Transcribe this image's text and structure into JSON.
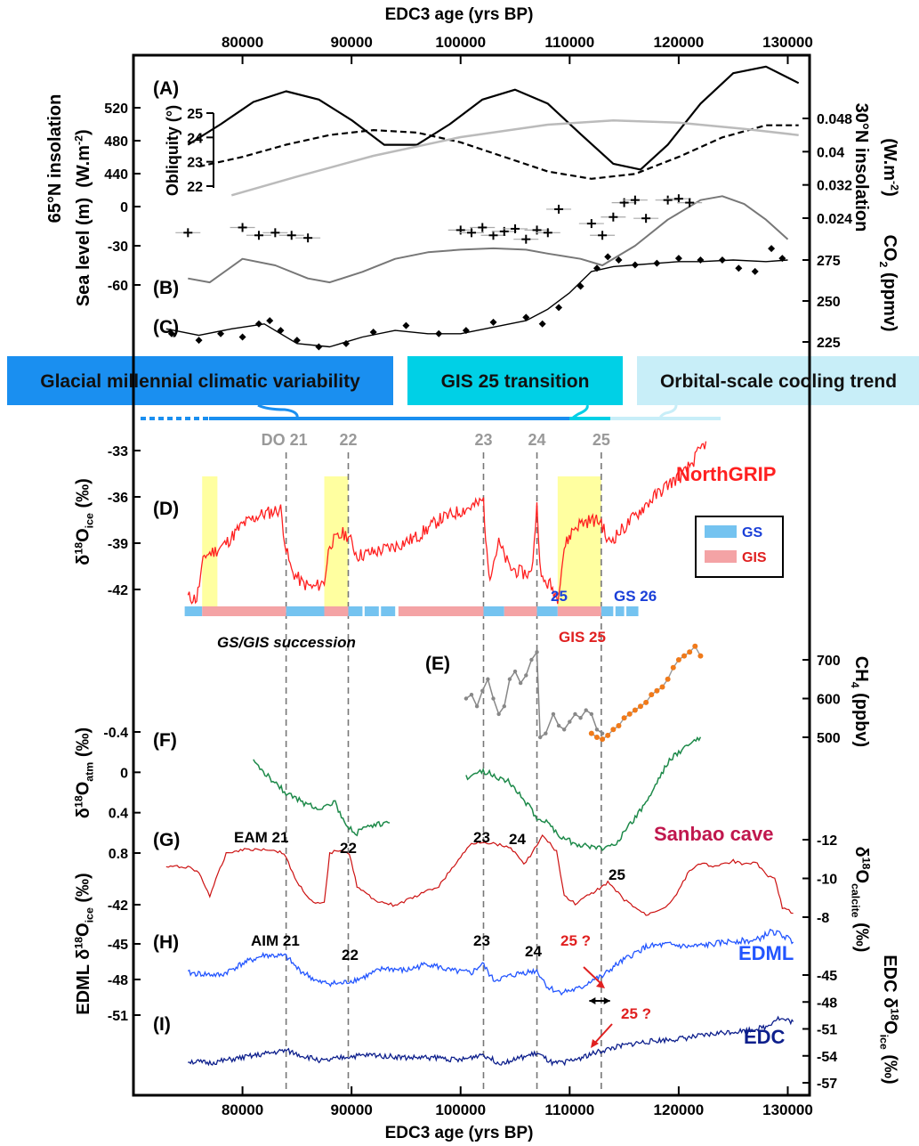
{
  "chart_data": {
    "type": "line",
    "x_axis": {
      "label": "EDC3 age (yrs BP)",
      "range": [
        70000,
        132000
      ],
      "ticks": [
        80000,
        90000,
        100000,
        110000,
        120000,
        130000
      ],
      "tick_labels": [
        "80000",
        "90000",
        "100000",
        "110000",
        "120000",
        "130000"
      ]
    },
    "left_axes": {
      "insolation65": {
        "label_main": "65°N insolation",
        "label_unit": "(W.m",
        "label_exp": "-2",
        "label_close": ")",
        "ticks": [
          "440",
          "480",
          "520"
        ]
      },
      "obliquity": {
        "label": "Obliquity (°)",
        "ticks": [
          "22",
          "23",
          "24",
          "25"
        ]
      },
      "sea_level": {
        "label": "Sea level (m)",
        "ticks": [
          "0",
          "-30",
          "-60"
        ]
      },
      "d18o_ice": {
        "label_main": "δ",
        "label_iso": "18",
        "label_o": "O",
        "label_sub": "ice",
        "label_unit": " (‰)",
        "ticks": [
          "-33",
          "-36",
          "-39",
          "-42"
        ]
      },
      "d18o_atm": {
        "label_main": "δ",
        "label_iso": "18",
        "label_o": "O",
        "label_sub": "atm",
        "label_unit": " (‰)",
        "ticks": [
          "-0.4",
          "0",
          "0.4",
          "0.8"
        ]
      },
      "edml": {
        "label_pre": "EDML δ",
        "label_iso": "18",
        "label_o": "O",
        "label_sub": "ice",
        "label_unit": " (‰)",
        "ticks": [
          "-42",
          "-45",
          "-48",
          "-51"
        ]
      }
    },
    "right_axes": {
      "insolation30": {
        "label_main": "30°N insolation",
        "label_unit": "(W.m",
        "label_exp": "-2",
        "label_close": ")",
        "ticks": [
          "0.048",
          "0.04",
          "0.032",
          "0.024"
        ]
      },
      "co2": {
        "label_main": "CO",
        "label_sub": "2",
        "label_unit": " (ppmv)",
        "ticks": [
          "275",
          "250",
          "225"
        ]
      },
      "ch4": {
        "label_main": "CH",
        "label_sub": "4",
        "label_unit": " (ppbv)",
        "ticks": [
          "700",
          "600",
          "500"
        ]
      },
      "calcite": {
        "label_main": "δ",
        "label_iso": "18",
        "label_o": "O",
        "label_sub": "calcite",
        "label_unit": " (‰)",
        "ticks": [
          "-12",
          "-10",
          "-8"
        ]
      },
      "edc": {
        "label_pre": "EDC δ",
        "label_iso": "18",
        "label_o": "O",
        "label_sub": "ice",
        "label_unit": " (‰)",
        "ticks": [
          "-45",
          "-48",
          "-51",
          "-54",
          "-57"
        ]
      }
    },
    "panel_letters": [
      "(A)",
      "(B)",
      "(C)",
      "(D)",
      "(E)",
      "(F)",
      "(G)",
      "(H)",
      "(I)"
    ],
    "banners": [
      {
        "label": "Glacial millennial climatic variability",
        "color": "#1a8ff0"
      },
      {
        "label": "GIS 25 transition",
        "color": "#00d0e6"
      },
      {
        "label": "Orbital-scale cooling trend",
        "color": "#c8eef8"
      }
    ],
    "events": [
      {
        "label": "DO 21",
        "age": 84000
      },
      {
        "label": "22",
        "age": 89700
      },
      {
        "label": "23",
        "age": 102100
      },
      {
        "label": "24",
        "age": 107000
      },
      {
        "label": "25",
        "age": 112900
      }
    ],
    "legend": [
      {
        "label": "GS",
        "color": "#74c3f0"
      },
      {
        "label": "GIS",
        "color": "#f4a3a5"
      }
    ],
    "series": [
      {
        "name": "NorthGRIP",
        "color": "#ff2020",
        "x": [
          75000,
          75800,
          76500,
          77500,
          78500,
          80000,
          81500,
          82500,
          83500,
          84000,
          84500,
          85500,
          86500,
          87500,
          88000,
          88500,
          89200,
          89700,
          90500,
          92000,
          94000,
          96000,
          98000,
          100000,
          101500,
          102100,
          102400,
          102700,
          103500,
          104500,
          105500,
          106500,
          107000,
          107400,
          108200,
          108900,
          109500,
          110300,
          111000,
          112000,
          112900,
          113500,
          115000,
          117000,
          119000,
          120500,
          121500,
          122500
        ],
        "y": [
          -42.5,
          -42.6,
          -39.8,
          -39.5,
          -39,
          -37.8,
          -37.2,
          -37,
          -36.8,
          -39.4,
          -40.8,
          -41.6,
          -41.9,
          -41.5,
          -39,
          -38.8,
          -38.4,
          -38.5,
          -39.8,
          -39.6,
          -39.2,
          -38.6,
          -37.5,
          -36.9,
          -36.5,
          -36.2,
          -39.8,
          -41,
          -39,
          -40.6,
          -40.9,
          -41,
          -36.6,
          -41.4,
          -41.7,
          -42.5,
          -39.3,
          -38.1,
          -37.7,
          -37.5,
          -37.6,
          -39,
          -38,
          -36.5,
          -35.2,
          -34.5,
          -33.5,
          -32.4
        ]
      },
      {
        "name": "EDML",
        "color": "#2255ff",
        "x": [
          75000,
          78000,
          80000,
          82000,
          84000,
          85000,
          87000,
          89000,
          91000,
          93000,
          95000,
          97000,
          99000,
          101000,
          102000,
          103000,
          104000,
          105500,
          107000,
          108000,
          109000,
          110000,
          111000,
          112000,
          113000,
          114000,
          115500,
          117000,
          119000,
          121000,
          123000,
          125000,
          127000,
          128500,
          129500,
          130500
        ],
        "y": [
          -47.6,
          -47.8,
          -46.8,
          -46.1,
          -46.2,
          -47.2,
          -48.4,
          -48.5,
          -48,
          -47.2,
          -47.4,
          -46.8,
          -47.4,
          -47.6,
          -46.8,
          -48.2,
          -48,
          -47.6,
          -47.4,
          -48.8,
          -49.2,
          -49.1,
          -48.9,
          -48.2,
          -47.9,
          -47.1,
          -46.2,
          -45.4,
          -45.2,
          -45.4,
          -45.2,
          -44.9,
          -44.9,
          -44.1,
          -44.4,
          -45
        ]
      },
      {
        "name": "EDC",
        "color": "#0d1f8c",
        "x": [
          75000,
          77000,
          80000,
          82000,
          84000,
          85500,
          87500,
          89500,
          92000,
          95000,
          98000,
          100000,
          102000,
          103500,
          105000,
          107000,
          108500,
          110000,
          111000,
          112500,
          114000,
          116000,
          118000,
          120000,
          122000,
          124000,
          126000,
          128000,
          129000,
          130500
        ],
        "y": [
          -54.6,
          -54.8,
          -54.2,
          -53.8,
          -53.4,
          -54,
          -54.6,
          -54.1,
          -53.9,
          -54.2,
          -54.2,
          -54.5,
          -53.8,
          -54.8,
          -54.4,
          -53.7,
          -54.9,
          -54.6,
          -54.2,
          -53.6,
          -53.1,
          -52.6,
          -52.3,
          -52.1,
          -51.8,
          -51.4,
          -51.2,
          -50.8,
          -49.8,
          -50.2
        ]
      },
      {
        "name": "Sanbao cave",
        "color": "#cc1111",
        "x": [
          73000,
          75000,
          76000,
          77000,
          78500,
          80000,
          82500,
          83800,
          85000,
          86500,
          87500,
          88000,
          89000,
          89800,
          90500,
          92000,
          94000,
          96000,
          98000,
          100000,
          101000,
          102000,
          104000,
          105000,
          105800,
          107000,
          107500,
          108000,
          108800,
          109500,
          110500,
          112000,
          113500,
          115000,
          117000,
          119000,
          120000,
          121000,
          122000,
          123500,
          125000,
          126000,
          127000,
          128000,
          128800,
          129500,
          130500
        ],
        "y": [
          -10.6,
          -10.6,
          -10.3,
          -9.1,
          -11.3,
          -11.5,
          -11.5,
          -11.3,
          -9.8,
          -8.7,
          -8.7,
          -11.3,
          -11.5,
          -11.3,
          -9.6,
          -8.9,
          -8.6,
          -9.1,
          -9.6,
          -11.1,
          -11.8,
          -11.9,
          -11.7,
          -11.4,
          -10.7,
          -11.7,
          -12.2,
          -11.9,
          -11.4,
          -9.1,
          -8.7,
          -9.2,
          -9.8,
          -8.9,
          -8.1,
          -8.6,
          -9.4,
          -10.4,
          -10.8,
          -10.6,
          -10.9,
          -10.7,
          -10.9,
          -10.2,
          -10,
          -8.5,
          -8.2
        ]
      },
      {
        "name": "",
        "color": "#888888",
        "x": [
          100500,
          101000,
          101500,
          102000,
          102500,
          103000,
          103500,
          104000,
          104500,
          105000,
          105500,
          106000,
          106500,
          107000,
          107300,
          107800,
          108500,
          109000,
          109500,
          110000,
          110500,
          111000,
          111500,
          112000,
          112500,
          113000
        ],
        "y": [
          600,
          610,
          580,
          620,
          650,
          600,
          560,
          580,
          650,
          670,
          640,
          660,
          700,
          720,
          500,
          510,
          560,
          530,
          520,
          540,
          560,
          550,
          570,
          560,
          520,
          510
        ]
      },
      {
        "name": "",
        "color": "#f07a1a",
        "x": [
          112000,
          112500,
          113000,
          113500,
          114000,
          114500,
          115000,
          115500,
          116000,
          116500,
          117000,
          117500,
          118000,
          118500,
          119000,
          119500,
          120000,
          120500,
          121000,
          121500,
          122000
        ],
        "y": [
          510,
          500,
          495,
          505,
          520,
          530,
          550,
          560,
          570,
          580,
          590,
          610,
          620,
          630,
          650,
          680,
          700,
          710,
          720,
          735,
          710
        ]
      },
      {
        "name": "",
        "color": "#1e8a4a",
        "x": [
          81000,
          82500,
          84000,
          85500,
          87000,
          88500,
          89500,
          90500,
          91500,
          92500,
          93500,
          100500,
          101500,
          102500,
          103500,
          104500,
          106000,
          107000,
          108000,
          109000,
          110000,
          111000,
          112000,
          113000,
          114000,
          115000,
          116000,
          117000,
          118000,
          119000,
          120000,
          121000,
          122000
        ],
        "y": [
          -0.1,
          0.05,
          0.2,
          0.3,
          0.35,
          0.3,
          0.55,
          0.6,
          0.55,
          0.52,
          0.5,
          0.05,
          0.0,
          0.0,
          0.05,
          0.1,
          0.3,
          0.45,
          0.5,
          0.62,
          0.68,
          0.72,
          0.74,
          0.75,
          0.72,
          0.6,
          0.45,
          0.3,
          0.1,
          -0.1,
          -0.2,
          -0.28,
          -0.35
        ]
      }
    ],
    "insolation65": {
      "x": [
        75000,
        78000,
        81000,
        84000,
        87000,
        90000,
        93000,
        96000,
        99000,
        102000,
        105000,
        108000,
        111000,
        114000,
        116500,
        119000,
        122000,
        125000,
        128000,
        131000
      ],
      "y": [
        475,
        500,
        527,
        540,
        530,
        505,
        475,
        475,
        500,
        530,
        542,
        525,
        488,
        452,
        445,
        475,
        525,
        562,
        570,
        550
      ]
    },
    "obliquity": {
      "x": [
        76000,
        80000,
        84000,
        88000,
        92000,
        96000,
        100000,
        104000,
        108000,
        112000,
        116000,
        120000,
        124000,
        128000,
        131000
      ],
      "y": [
        22.8,
        23.2,
        23.7,
        24.1,
        24.3,
        24.2,
        23.8,
        23.2,
        22.6,
        22.3,
        22.5,
        23.2,
        24.0,
        24.5,
        24.5
      ]
    },
    "insolation30_gray": {
      "x": [
        79000,
        85000,
        92000,
        100000,
        108000,
        114000,
        120000,
        126000,
        131000
      ],
      "y": [
        0.0295,
        0.034,
        0.039,
        0.0435,
        0.0465,
        0.0475,
        0.047,
        0.0455,
        0.044
      ]
    },
    "co2": {
      "x": [
        73000,
        76000,
        79000,
        82000,
        85000,
        88000,
        91000,
        94000,
        97000,
        100000,
        103000,
        106000,
        108000,
        110000,
        112000,
        114000,
        116000,
        118000,
        120000,
        122000,
        125000,
        128000,
        130000
      ],
      "y": [
        233,
        229,
        233,
        236,
        224,
        222,
        228,
        232,
        230,
        230,
        234,
        238,
        245,
        255,
        268,
        271,
        272,
        273,
        274,
        274,
        275,
        274,
        275
      ]
    },
    "co2_points": [
      [
        73500,
        230
      ],
      [
        76000,
        226
      ],
      [
        78000,
        230
      ],
      [
        80000,
        228
      ],
      [
        81500,
        236
      ],
      [
        82500,
        238
      ],
      [
        83500,
        232
      ],
      [
        85000,
        226
      ],
      [
        87000,
        222
      ],
      [
        89500,
        224
      ],
      [
        92000,
        231
      ],
      [
        95000,
        235
      ],
      [
        98000,
        230
      ],
      [
        100500,
        232
      ],
      [
        103000,
        237
      ],
      [
        106000,
        240
      ],
      [
        107500,
        236
      ],
      [
        109000,
        246
      ],
      [
        111000,
        259
      ],
      [
        112500,
        270
      ],
      [
        113500,
        277
      ],
      [
        114500,
        275
      ],
      [
        116000,
        272
      ],
      [
        118000,
        273
      ],
      [
        120000,
        276
      ],
      [
        122000,
        275
      ],
      [
        124000,
        275
      ],
      [
        125500,
        270
      ],
      [
        127000,
        268
      ],
      [
        128500,
        282
      ],
      [
        129500,
        276
      ]
    ],
    "sea_level": {
      "x": [
        75000,
        77000,
        80000,
        83000,
        86000,
        88000,
        91000,
        94000,
        97000,
        100000,
        103000,
        106000,
        108000,
        111000,
        113000,
        116000,
        119000,
        122000,
        124000,
        126000,
        128000,
        130000
      ],
      "y": [
        -55,
        -58,
        -40,
        -45,
        -55,
        -58,
        -50,
        -40,
        -35,
        -33,
        -32,
        -33,
        -36,
        -40,
        -45,
        -30,
        -10,
        5,
        8,
        2,
        -10,
        -25
      ]
    },
    "sea_points": [
      [
        75000,
        -20
      ],
      [
        80000,
        -16
      ],
      [
        81500,
        -22
      ],
      [
        83000,
        -20
      ],
      [
        84500,
        -22
      ],
      [
        86000,
        -24
      ],
      [
        100000,
        -18
      ],
      [
        101000,
        -20
      ],
      [
        102000,
        -16
      ],
      [
        103000,
        -22
      ],
      [
        104000,
        -19
      ],
      [
        105000,
        -17
      ],
      [
        106000,
        -25
      ],
      [
        107000,
        -18
      ],
      [
        108000,
        -20
      ],
      [
        109000,
        -2
      ],
      [
        112000,
        -13
      ],
      [
        113000,
        -22
      ],
      [
        114000,
        -8
      ],
      [
        115000,
        3
      ],
      [
        116000,
        5
      ],
      [
        117000,
        -9
      ],
      [
        119000,
        5
      ],
      [
        120000,
        6
      ],
      [
        121000,
        3
      ]
    ],
    "annotations": {
      "ngrip": "NorthGRIP",
      "sanbao": "Sanbao cave",
      "edml": "EDML",
      "edc": "EDC",
      "gs_gis": "GS/GIS succession",
      "e_panel": "(E)",
      "eam21": "EAM 21",
      "g22": "22",
      "g23": "23",
      "g24": "24",
      "g25": "25",
      "aim21": "AIM 21",
      "h22": "22",
      "h23": "23",
      "h24": "24",
      "h25q": "25 ?",
      "i25q": "25 ?",
      "strip25": "25",
      "gs26": "GS 26",
      "gis25": "GIS 25"
    }
  }
}
